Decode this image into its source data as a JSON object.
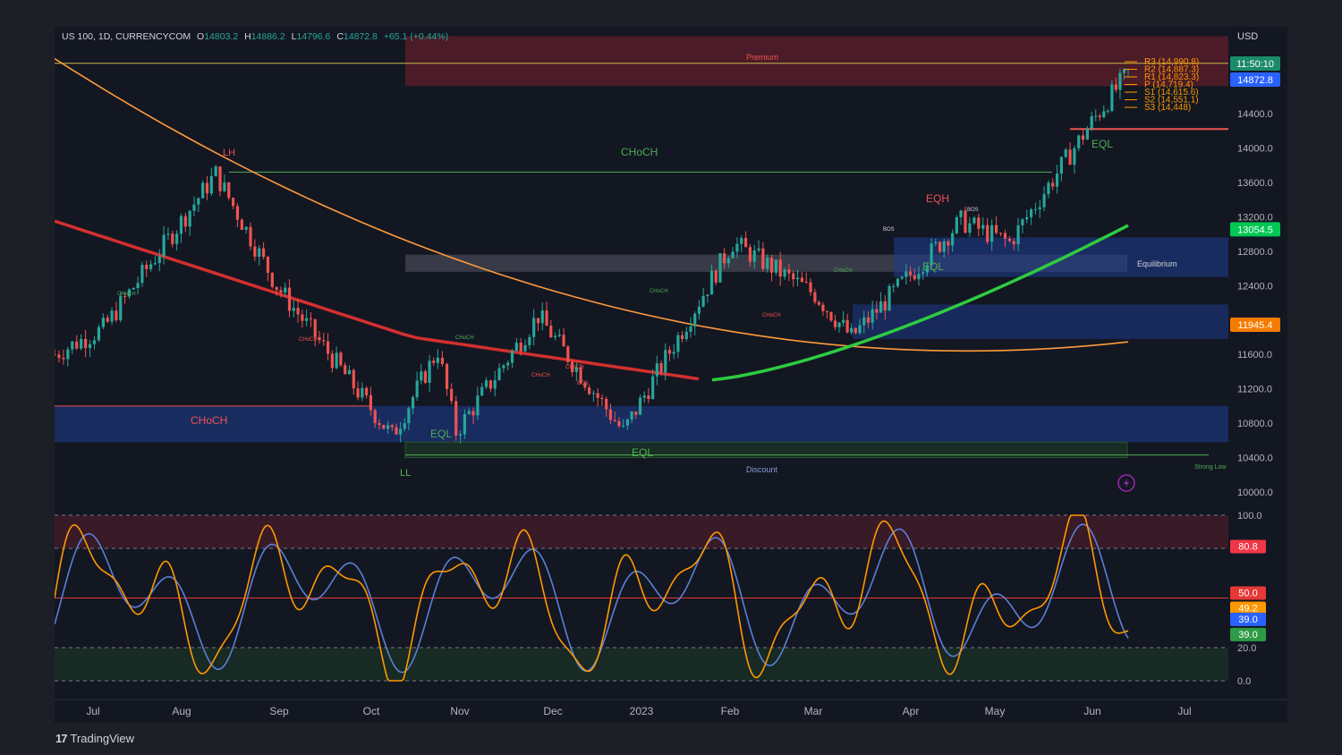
{
  "symbol_header": {
    "symbol": "US 100, 1D, CURRENCYCOM",
    "open_label": "O",
    "open": "14803.2",
    "high_label": "H",
    "high": "14886.2",
    "low_label": "L",
    "low": "14796.6",
    "close_label": "C",
    "close": "14872.8",
    "change": "+65.1 (+0.44%)"
  },
  "currency": "USD",
  "price_axis": {
    "ticks": [
      "14400.0",
      "14000.0",
      "13600.0",
      "13200.0",
      "12800.0",
      "12400.0",
      "11600.0",
      "11200.0",
      "10800.0",
      "10400.0",
      "10000.0"
    ],
    "badges": [
      {
        "text": "11:50:10",
        "color": "#1b8a6b"
      },
      {
        "text": "14872.8",
        "color": "#2962ff"
      },
      {
        "text": "13054.5",
        "color": "#00c853"
      },
      {
        "text": "11945.4",
        "color": "#f57c00"
      }
    ]
  },
  "time_axis": [
    "Jul",
    "Aug",
    "Sep",
    "Oct",
    "Nov",
    "Dec",
    "2023",
    "Feb",
    "Mar",
    "Apr",
    "May",
    "Jun",
    "Jul"
  ],
  "pivot_labels": [
    "R3 (14,990.8)",
    "R2 (14,887.3)",
    "R1 (14,823.3)",
    "P (14,719.4)",
    "S1 (14,615.6)",
    "S2 (14,551.1)",
    "S3 (14,448)"
  ],
  "annotations": {
    "premium": "Premium",
    "discount": "Discount",
    "equilibrium": "Equilibrium",
    "strong_low": "Strong Low",
    "lh": "LH",
    "ll": "LL",
    "choch_top": "CHoCH",
    "choch_left": "CHoCH",
    "eqh": "EQH",
    "eql_jun": "EQL",
    "eql_apr": "EQL",
    "eql_nov": "EQL",
    "eql_dec": "EQL",
    "bos_1": "BOS",
    "bos_2": "BOS",
    "bos_3": "BOS",
    "choch_small": [
      "CHoCH",
      "CHoCH",
      "CHoCH",
      "CHoCH",
      "CHoCH",
      "CHoCH",
      "CHoCH",
      "CHoCH"
    ]
  },
  "osc_axis": {
    "ticks": [
      "100.0",
      "20.0",
      "0.0"
    ],
    "badges": [
      {
        "text": "80.8",
        "color": "#f23645"
      },
      {
        "text": "50.0",
        "color": "#e53935"
      },
      {
        "text": "49.2",
        "color": "#ff9800"
      },
      {
        "text": "39.0",
        "color": "#2962ff"
      },
      {
        "text": "39.0",
        "color": "#2e9b46"
      }
    ]
  },
  "brand": "TradingView",
  "colors": {
    "up": "#26a69a",
    "down": "#ef5350",
    "ema_red": "#d32f2f",
    "ema_green": "#2ecc40",
    "curve_orange": "#ff9a3c",
    "osc_k": "#ff9800",
    "osc_d": "#5b7fd6"
  },
  "chart_data": {
    "type": "candlestick",
    "timeframe": "1D",
    "x_start": "2022-06-24",
    "x_end": "2023-06-12",
    "ylim": [
      10000,
      15300
    ],
    "price_path": [
      [
        "2022-06-24",
        11600
      ],
      [
        "2022-07-10",
        11900
      ],
      [
        "2022-08-16",
        13700
      ],
      [
        "2022-09-05",
        12400
      ],
      [
        "2022-10-13",
        10650
      ],
      [
        "2022-10-28",
        11650
      ],
      [
        "2022-11-03",
        10700
      ],
      [
        "2022-11-30",
        12050
      ],
      [
        "2022-12-28",
        10700
      ],
      [
        "2023-02-02",
        12900
      ],
      [
        "2023-03-01",
        12300
      ],
      [
        "2023-03-13",
        11800
      ],
      [
        "2023-04-18",
        13150
      ],
      [
        "2023-05-04",
        12900
      ],
      [
        "2023-05-31",
        14300
      ],
      [
        "2023-06-12",
        14872.8
      ]
    ],
    "last_close": 14872.8,
    "sma_200_last": 13054.5,
    "curve_last": 11945.4,
    "pivots": {
      "R3": 14990.8,
      "R2": 14887.3,
      "R1": 14823.3,
      "P": 14719.4,
      "S1": 14615.6,
      "S2": 14551.1,
      "S3": 14448
    },
    "stochastic": {
      "k_last": 49.2,
      "d_last": 39.0,
      "upper": 80,
      "lower": 20,
      "ticks": [
        0,
        20,
        100
      ]
    }
  }
}
